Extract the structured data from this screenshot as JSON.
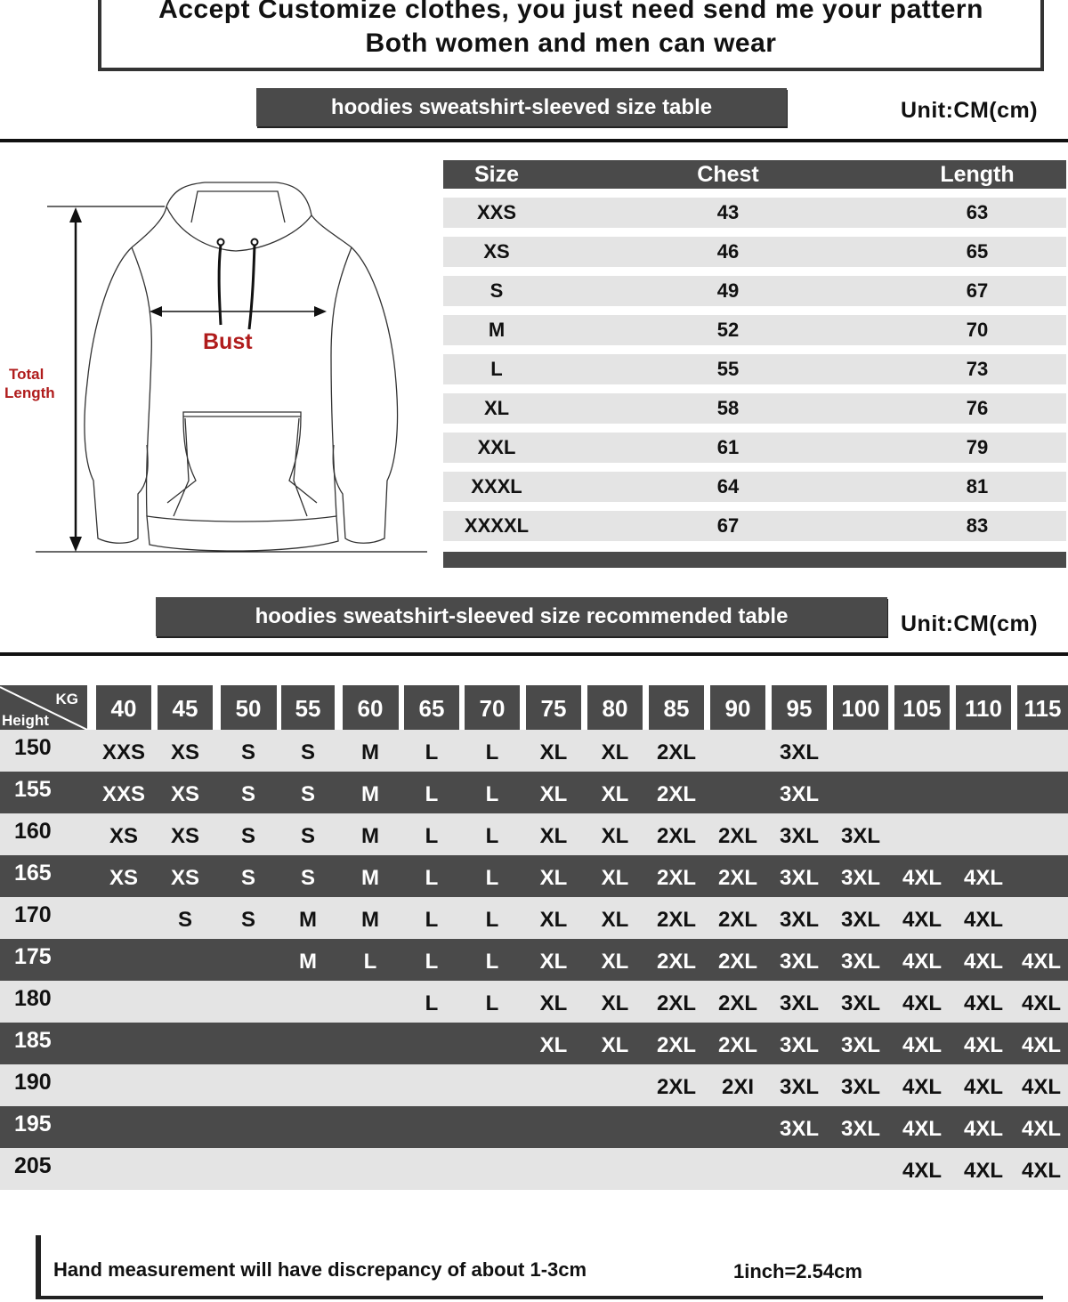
{
  "header": {
    "line1": "Accept Customize clothes, you just need send me your pattern",
    "line2": "Both women and men can wear"
  },
  "size_table": {
    "title": "hoodies sweatshirt-sleeved size  table",
    "unit": "Unit:CM(cm)",
    "columns": [
      "Size",
      "Chest",
      "Length"
    ],
    "rows": [
      [
        "XXS",
        "43",
        "63"
      ],
      [
        "XS",
        "46",
        "65"
      ],
      [
        "S",
        "49",
        "67"
      ],
      [
        "M",
        "52",
        "70"
      ],
      [
        "L",
        "55",
        "73"
      ],
      [
        "XL",
        "58",
        "76"
      ],
      [
        "XXL",
        "61",
        "79"
      ],
      [
        "XXXL",
        "64",
        "81"
      ],
      [
        "XXXXL",
        "67",
        "83"
      ]
    ]
  },
  "diagram": {
    "bust_label": "Bust",
    "length_label_1": "Total",
    "length_label_2": "Length",
    "accent_color": "#b01c1c"
  },
  "recommend_table": {
    "title": "hoodies sweatshirt-sleeved size recommended table",
    "unit": "Unit:CM(cm)",
    "corner_kg": "KG",
    "corner_height": "Height",
    "weights": [
      "40",
      "45",
      "50",
      "55",
      "60",
      "65",
      "70",
      "75",
      "80",
      "85",
      "90",
      "95",
      "100",
      "105",
      "110",
      "115"
    ],
    "rows": [
      {
        "height": "150",
        "cells": [
          "XXS",
          "XS",
          "S",
          "S",
          "M",
          "L",
          "L",
          "XL",
          "XL",
          "2XL",
          "",
          "3XL",
          "",
          "",
          "",
          ""
        ]
      },
      {
        "height": "155",
        "cells": [
          "XXS",
          "XS",
          "S",
          "S",
          "M",
          "L",
          "L",
          "XL",
          "XL",
          "2XL",
          "",
          "3XL",
          "",
          "",
          "",
          ""
        ]
      },
      {
        "height": "160",
        "cells": [
          "XS",
          "XS",
          "S",
          "S",
          "M",
          "L",
          "L",
          "XL",
          "XL",
          "2XL",
          "2XL",
          "3XL",
          "3XL",
          "",
          "",
          ""
        ]
      },
      {
        "height": "165",
        "cells": [
          "XS",
          "XS",
          "S",
          "S",
          "M",
          "L",
          "L",
          "XL",
          "XL",
          "2XL",
          "2XL",
          "3XL",
          "3XL",
          "4XL",
          "4XL",
          ""
        ]
      },
      {
        "height": "170",
        "cells": [
          "",
          "S",
          "S",
          "M",
          "M",
          "L",
          "L",
          "XL",
          "XL",
          "2XL",
          "2XL",
          "3XL",
          "3XL",
          "4XL",
          "4XL",
          ""
        ]
      },
      {
        "height": "175",
        "cells": [
          "",
          "",
          "",
          "M",
          "L",
          "L",
          "L",
          "XL",
          "XL",
          "2XL",
          "2XL",
          "3XL",
          "3XL",
          "4XL",
          "4XL",
          "4XL"
        ]
      },
      {
        "height": "180",
        "cells": [
          "",
          "",
          "",
          "",
          "",
          "L",
          "L",
          "XL",
          "XL",
          "2XL",
          "2XL",
          "3XL",
          "3XL",
          "4XL",
          "4XL",
          "4XL"
        ]
      },
      {
        "height": "185",
        "cells": [
          "",
          "",
          "",
          "",
          "",
          "",
          "",
          "XL",
          "XL",
          "2XL",
          "2XL",
          "3XL",
          "3XL",
          "4XL",
          "4XL",
          "4XL"
        ]
      },
      {
        "height": "190",
        "cells": [
          "",
          "",
          "",
          "",
          "",
          "",
          "",
          "",
          "",
          "2XL",
          "2XI",
          "3XL",
          "3XL",
          "4XL",
          "4XL",
          "4XL"
        ]
      },
      {
        "height": "195",
        "cells": [
          "",
          "",
          "",
          "",
          "",
          "",
          "",
          "",
          "",
          "",
          "",
          "3XL",
          "3XL",
          "4XL",
          "4XL",
          "4XL"
        ]
      },
      {
        "height": "205",
        "cells": [
          "",
          "",
          "",
          "",
          "",
          "",
          "",
          "",
          "",
          "",
          "",
          "",
          "",
          "4XL",
          "4XL",
          "4XL"
        ]
      }
    ]
  },
  "footer": {
    "note": "Hand measurement will have discrepancy of about  1-3cm",
    "conversion": "1inch=2.54cm"
  },
  "colors": {
    "dark_band": "#4a4a4a",
    "light_band": "#e4e4e4"
  }
}
